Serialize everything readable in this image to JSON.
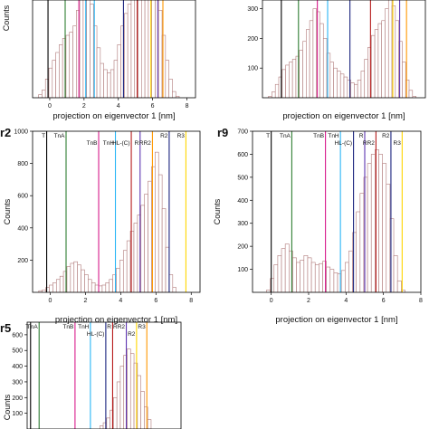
{
  "chart_data": [
    {
      "id": "top-left",
      "panel_label": "",
      "type": "bar",
      "xlabel": "projection on eigenvector 1 [nm]",
      "ylabel": "Counts",
      "xlim": [
        -1,
        8.5
      ],
      "ylim": [
        0,
        400
      ],
      "xticks": [
        "0",
        "2",
        "4",
        "6",
        "8"
      ],
      "xtick_values": [
        0,
        2,
        4,
        6,
        8
      ],
      "yticks": [],
      "ytick_values": [],
      "histogram": {
        "bin_centers": [
          -0.55,
          -0.35,
          -0.15,
          0.05,
          0.25,
          0.45,
          0.65,
          0.85,
          1.05,
          1.25,
          1.45,
          1.65,
          1.85,
          2.05,
          2.25,
          2.45,
          2.65,
          2.85,
          3.05,
          3.25,
          3.45,
          3.65,
          3.85,
          4.05,
          4.25,
          4.45,
          4.65,
          4.85,
          5.05,
          5.25,
          5.45,
          5.65,
          5.85,
          6.05,
          6.25,
          6.45,
          6.65,
          6.85,
          7.05,
          7.25,
          7.45
        ],
        "counts": [
          10,
          25,
          60,
          95,
          120,
          145,
          170,
          190,
          200,
          210,
          230,
          280,
          330,
          385,
          360,
          300,
          230,
          160,
          110,
          90,
          80,
          90,
          120,
          170,
          230,
          270,
          300,
          320,
          330,
          345,
          360,
          375,
          385,
          370,
          335,
          280,
          200,
          120,
          60,
          20,
          5
        ]
      },
      "markers": [
        {
          "x": -0.1,
          "color": "#000000"
        },
        {
          "x": 0.9,
          "color": "#2e7d32"
        },
        {
          "x": 1.7,
          "color": "#d81b8c"
        },
        {
          "x": 2.1,
          "color": "#29b6f6"
        },
        {
          "x": 2.6,
          "color": "#29b6f6"
        },
        {
          "x": 4.3,
          "color": "#1a237e"
        },
        {
          "x": 5.1,
          "color": "#b71c1c"
        },
        {
          "x": 5.9,
          "color": "#ffd600"
        },
        {
          "x": 6.3,
          "color": "#5e35b1"
        },
        {
          "x": 6.6,
          "color": "#ff9800"
        }
      ]
    },
    {
      "id": "top-right",
      "panel_label": "",
      "type": "bar",
      "xlabel": "projection on eigenvector 1 [nm]",
      "ylabel": "",
      "xlim": [
        -1,
        8.5
      ],
      "ylim": [
        0,
        360
      ],
      "xticks": [],
      "xtick_values": [],
      "yticks": [
        "100",
        "200",
        "300"
      ],
      "ytick_values": [
        100,
        200,
        300
      ],
      "histogram": {
        "bin_centers": [
          -0.55,
          -0.35,
          -0.15,
          0.05,
          0.25,
          0.45,
          0.65,
          0.85,
          1.05,
          1.25,
          1.45,
          1.65,
          1.85,
          2.05,
          2.25,
          2.45,
          2.65,
          2.85,
          3.05,
          3.25,
          3.45,
          3.65,
          3.85,
          4.05,
          4.25,
          4.45,
          4.65,
          4.85,
          5.05,
          5.25,
          5.45,
          5.65,
          5.85,
          6.05,
          6.25,
          6.45,
          6.65,
          6.85,
          7.05,
          7.25,
          7.45,
          7.65,
          7.85
        ],
        "counts": [
          5,
          20,
          45,
          70,
          95,
          110,
          120,
          130,
          140,
          160,
          190,
          230,
          260,
          300,
          290,
          250,
          200,
          150,
          120,
          100,
          90,
          80,
          70,
          60,
          50,
          45,
          60,
          90,
          130,
          170,
          210,
          230,
          250,
          260,
          300,
          330,
          310,
          260,
          190,
          120,
          60,
          25,
          5
        ]
      },
      "markers": [
        {
          "x": 0.1,
          "color": "#000000"
        },
        {
          "x": 1.1,
          "color": "#2e7d32"
        },
        {
          "x": 2.2,
          "color": "#d81b8c"
        },
        {
          "x": 2.8,
          "color": "#29b6f6"
        },
        {
          "x": 4.1,
          "color": "#1a237e"
        },
        {
          "x": 5.3,
          "color": "#b71c1c"
        },
        {
          "x": 6.6,
          "color": "#ffd600"
        },
        {
          "x": 7.0,
          "color": "#5e35b1"
        },
        {
          "x": 7.4,
          "color": "#ff9800"
        }
      ]
    },
    {
      "id": "r2",
      "panel_label": "r2",
      "type": "bar",
      "xlabel": "projection on eigenvector 1 [nm]",
      "ylabel": "Counts",
      "xlim": [
        -1,
        8.5
      ],
      "ylim": [
        0,
        1000
      ],
      "xticks": [
        "0",
        "2",
        "4",
        "6",
        "8"
      ],
      "xtick_values": [
        0,
        2,
        4,
        6,
        8
      ],
      "yticks": [
        "200",
        "400",
        "600",
        "800",
        "1000"
      ],
      "ytick_values": [
        200,
        400,
        600,
        800,
        1000
      ],
      "histogram": {
        "bin_centers": [
          -0.55,
          -0.35,
          -0.15,
          0.05,
          0.25,
          0.45,
          0.65,
          0.85,
          1.05,
          1.25,
          1.45,
          1.65,
          1.85,
          2.05,
          2.25,
          2.45,
          2.65,
          2.85,
          3.05,
          3.25,
          3.45,
          3.65,
          3.85,
          4.05,
          4.25,
          4.45,
          4.65,
          4.85,
          5.05,
          5.25,
          5.45,
          5.65,
          5.85,
          6.05,
          6.25,
          6.45,
          6.65,
          6.85,
          7.05
        ],
        "counts": [
          10,
          15,
          30,
          45,
          60,
          80,
          100,
          130,
          160,
          180,
          190,
          170,
          140,
          110,
          80,
          60,
          45,
          40,
          45,
          60,
          80,
          110,
          150,
          200,
          260,
          320,
          380,
          430,
          480,
          540,
          610,
          690,
          780,
          870,
          730,
          520,
          280,
          110,
          30
        ]
      },
      "markers": [
        {
          "x": -0.2,
          "color": "#000000",
          "label": "T",
          "row": 0
        },
        {
          "x": 0.9,
          "color": "#2e7d32",
          "label": "TnA",
          "row": 0
        },
        {
          "x": 2.75,
          "color": "#d81b8c",
          "label": "TnB",
          "row": 1
        },
        {
          "x": 3.7,
          "color": "#29b6f6",
          "label": "TnH",
          "row": 1
        },
        {
          "x": 4.6,
          "color": "#b71c1c",
          "label": "HL-(C)",
          "row": 1
        },
        {
          "x": 5.1,
          "color": "#5e35b1",
          "label": "R",
          "row": 1
        },
        {
          "x": 5.8,
          "color": "#ff9800",
          "label": "RR2",
          "row": 1
        },
        {
          "x": 6.75,
          "color": "#1a237e",
          "label": "R2",
          "row": 0
        },
        {
          "x": 7.7,
          "color": "#ffd600",
          "label": "R3",
          "row": 0
        }
      ]
    },
    {
      "id": "r9",
      "panel_label": "r9",
      "type": "bar",
      "xlabel": "projection on eigenvector 1 [nm]",
      "ylabel": "Counts",
      "xlim": [
        -1,
        8
      ],
      "ylim": [
        0,
        700
      ],
      "xticks": [
        "0",
        "2",
        "4",
        "6",
        "8"
      ],
      "xtick_values": [
        0,
        2,
        4,
        6,
        8
      ],
      "yticks": [
        "100",
        "200",
        "300",
        "400",
        "500",
        "600",
        "700"
      ],
      "ytick_values": [
        100,
        200,
        300,
        400,
        500,
        600,
        700
      ],
      "histogram": {
        "bin_centers": [
          -0.15,
          0.05,
          0.25,
          0.45,
          0.65,
          0.85,
          1.05,
          1.25,
          1.45,
          1.65,
          1.85,
          2.05,
          2.25,
          2.45,
          2.65,
          2.85,
          3.05,
          3.25,
          3.45,
          3.65,
          3.85,
          4.05,
          4.25,
          4.45,
          4.65,
          4.85,
          5.05,
          5.25,
          5.45,
          5.65,
          5.85,
          6.05,
          6.25,
          6.45,
          6.65,
          6.85,
          7.05
        ],
        "counts": [
          10,
          60,
          120,
          160,
          190,
          210,
          180,
          150,
          130,
          140,
          160,
          150,
          130,
          120,
          125,
          135,
          110,
          100,
          85,
          80,
          95,
          130,
          180,
          260,
          350,
          430,
          500,
          560,
          600,
          620,
          600,
          560,
          470,
          320,
          160,
          50,
          10
        ]
      },
      "markers": [
        {
          "x": 0.0,
          "color": "#000000",
          "label": "T",
          "row": 0
        },
        {
          "x": 1.1,
          "color": "#2e7d32",
          "label": "TnA",
          "row": 0
        },
        {
          "x": 2.9,
          "color": "#d81b8c",
          "label": "TnB",
          "row": 0
        },
        {
          "x": 3.7,
          "color": "#29b6f6",
          "label": "TnH",
          "row": 0
        },
        {
          "x": 4.4,
          "color": "#1a237e",
          "label": "HL-(C)",
          "row": 1
        },
        {
          "x": 5.0,
          "color": "#5e35b1",
          "label": "R",
          "row": 0
        },
        {
          "x": 5.6,
          "color": "#b71c1c",
          "label": "RR2",
          "row": 1
        },
        {
          "x": 6.4,
          "color": "#1a237e",
          "label": "R2",
          "row": 0
        },
        {
          "x": 7.0,
          "color": "#ffd600",
          "label": "R3",
          "row": 1
        }
      ]
    },
    {
      "id": "r5",
      "panel_label": "r5",
      "type": "bar",
      "xlabel": "",
      "ylabel": "Counts",
      "xlim": [
        -0.5,
        8.5
      ],
      "ylim": [
        0,
        680
      ],
      "xticks": [],
      "xtick_values": [],
      "yticks": [
        "100",
        "200",
        "300",
        "400",
        "500",
        "600"
      ],
      "ytick_values": [
        100,
        200,
        300,
        400,
        500,
        600
      ],
      "histogram": {
        "bin_centers": [
          3.85,
          4.05,
          4.25,
          4.45,
          4.65,
          4.85,
          5.05,
          5.25,
          5.45,
          5.65,
          5.85,
          6.05,
          6.25,
          6.45,
          6.65
        ],
        "counts": [
          20,
          40,
          70,
          120,
          200,
          300,
          400,
          470,
          510,
          480,
          420,
          340,
          240,
          140,
          60
        ]
      },
      "markers": [
        {
          "x": -0.3,
          "color": "#000000",
          "label": "T",
          "row": 0
        },
        {
          "x": 0.2,
          "color": "#2e7d32",
          "label": "TnA",
          "row": 0
        },
        {
          "x": 2.3,
          "color": "#d81b8c",
          "label": "TnB",
          "row": 0
        },
        {
          "x": 3.2,
          "color": "#29b6f6",
          "label": "TnH",
          "row": 0
        },
        {
          "x": 4.1,
          "color": "#1a237e",
          "label": "HL-(C)",
          "row": 1
        },
        {
          "x": 4.5,
          "color": "#b71c1c",
          "label": "R",
          "row": 0
        },
        {
          "x": 5.3,
          "color": "#5e35b1",
          "label": "RR2",
          "row": 0
        },
        {
          "x": 5.9,
          "color": "#ffd600",
          "label": "R2",
          "row": 1
        },
        {
          "x": 6.5,
          "color": "#ff9800",
          "label": "R3",
          "row": 0
        }
      ]
    }
  ]
}
